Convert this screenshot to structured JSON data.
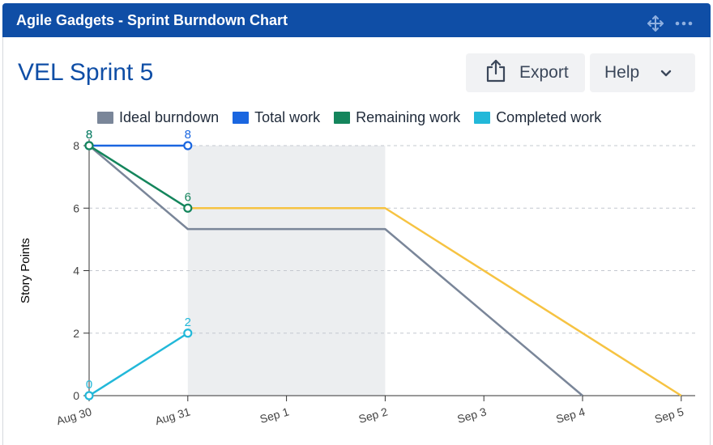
{
  "header": {
    "title": "Agile Gadgets - Sprint Burndown Chart",
    "move_icon": "move-icon",
    "more_icon": "more-icon"
  },
  "sprint_title": "VEL Sprint 5",
  "buttons": {
    "export_label": "Export",
    "export_icon": "share-icon",
    "help_label": "Help",
    "help_icon": "chevron-down-icon"
  },
  "colors": {
    "header": "#0f4ea6",
    "ideal": "#7a8699",
    "total": "#1a66e0",
    "remaining": "#14855c",
    "completed": "#22b8d9",
    "forecast": "#f6c342",
    "nonworking": "#eceef0"
  },
  "chart_data": {
    "type": "line",
    "ylabel": "Story Points",
    "xlabel": "",
    "ylim": [
      0,
      8
    ],
    "yticks": [
      0,
      2,
      4,
      6,
      8
    ],
    "categories": [
      "Aug 30",
      "Aug 31",
      "Sep 1",
      "Sep 2",
      "Sep 3",
      "Sep 4",
      "Sep 5"
    ],
    "non_working_range": [
      "Aug 31",
      "Sep 2"
    ],
    "grid": "horizontal-dashed",
    "legend_position": "top",
    "series": [
      {
        "name": "Ideal burndown",
        "color": "#7a8699",
        "x": [
          0,
          1,
          3,
          5
        ],
        "y": [
          8,
          5.33,
          5.33,
          0
        ]
      },
      {
        "name": "Total work",
        "color": "#1a66e0",
        "x": [
          0,
          1
        ],
        "y": [
          8,
          8
        ],
        "markers": true,
        "labels": [
          "8",
          "8"
        ]
      },
      {
        "name": "Remaining work",
        "color": "#14855c",
        "x": [
          0,
          1
        ],
        "y": [
          8,
          6
        ],
        "markers": true,
        "labels": [
          "8",
          "6"
        ]
      },
      {
        "name": "Completed work",
        "color": "#22b8d9",
        "x": [
          0,
          1
        ],
        "y": [
          0,
          2
        ],
        "markers": true,
        "labels": [
          "0",
          "2"
        ]
      },
      {
        "color": "#f6c342",
        "x": [
          1,
          3,
          6
        ],
        "y": [
          6,
          6,
          0
        ]
      }
    ]
  }
}
